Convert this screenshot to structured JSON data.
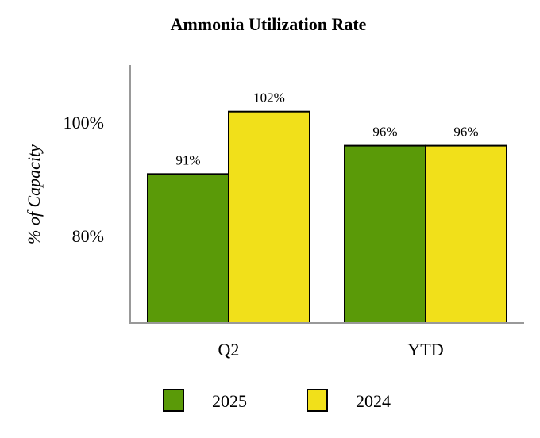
{
  "chart_data": {
    "type": "bar",
    "title": "Ammonia Utilization Rate",
    "ylabel": "% of Capacity",
    "xlabel": "",
    "categories": [
      "Q2",
      "YTD"
    ],
    "series": [
      {
        "name": "2025",
        "values": [
          91,
          96
        ],
        "labels": [
          "91%",
          "96%"
        ],
        "color": "#5a9a08"
      },
      {
        "name": "2024",
        "values": [
          102,
          96
        ],
        "labels": [
          "102%",
          "96%"
        ],
        "color": "#f1e01a"
      }
    ],
    "ylim": [
      65,
      112
    ],
    "yticks": [
      {
        "value": 80,
        "label": "80%"
      },
      {
        "value": 100,
        "label": "100%"
      }
    ],
    "grid": false,
    "legend": "bottom"
  }
}
